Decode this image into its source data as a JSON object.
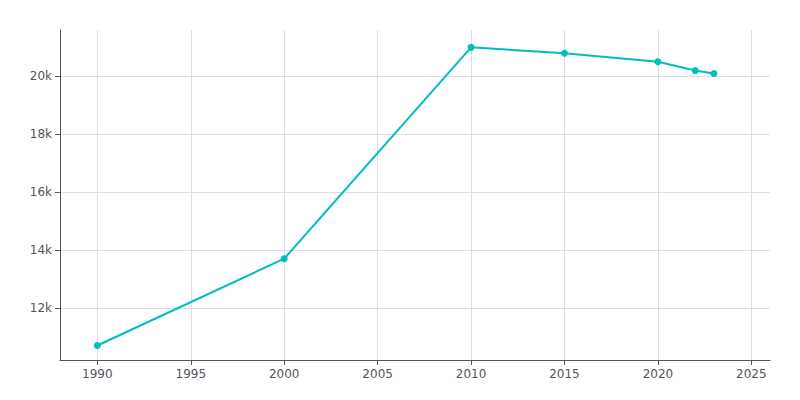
{
  "chart_data": {
    "type": "line",
    "x": [
      1990,
      2000,
      2010,
      2015,
      2020,
      2022,
      2023
    ],
    "values": [
      10700,
      13700,
      21000,
      20800,
      20500,
      20200,
      20100
    ],
    "color": "#00BEBE",
    "marker": "circle",
    "xlim": [
      1988,
      2026
    ],
    "ylim": [
      10200,
      21600
    ],
    "xticks": [
      1990,
      1995,
      2000,
      2005,
      2010,
      2015,
      2020,
      2025
    ],
    "yticks": [
      {
        "value": 12000,
        "label": "12k"
      },
      {
        "value": 14000,
        "label": "14k"
      },
      {
        "value": 16000,
        "label": "16k"
      },
      {
        "value": 18000,
        "label": "18k"
      },
      {
        "value": 20000,
        "label": "20k"
      }
    ],
    "grid": true
  }
}
